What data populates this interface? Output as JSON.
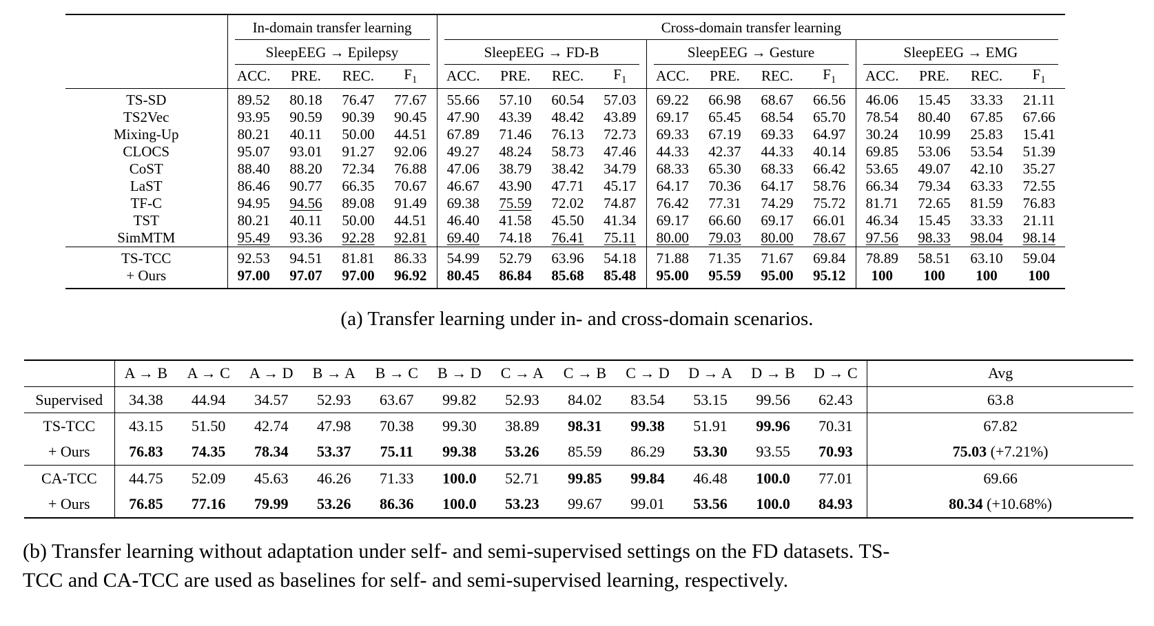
{
  "page": {
    "background": "#ffffff",
    "text_color": "#000000"
  },
  "table_a": {
    "group_titles": [
      "In-domain transfer learning",
      "Cross-domain transfer learning"
    ],
    "datasets": [
      "SleepEEG → Epilepsy",
      "SleepEEG → FD-B",
      "SleepEEG → Gesture",
      "SleepEEG → EMG"
    ],
    "metrics": [
      "ACC.",
      "PRE.",
      "REC.",
      "F1"
    ],
    "rows": [
      {
        "label": "TS-SD",
        "cells": [
          "89.52",
          "80.18",
          "76.47",
          "77.67",
          "55.66",
          "57.10",
          "60.54",
          "57.03",
          "69.22",
          "66.98",
          "68.67",
          "66.56",
          "46.06",
          "15.45",
          "33.33",
          "21.11"
        ],
        "styles": "................"
      },
      {
        "label": "TS2Vec",
        "cells": [
          "93.95",
          "90.59",
          "90.39",
          "90.45",
          "47.90",
          "43.39",
          "48.42",
          "43.89",
          "69.17",
          "65.45",
          "68.54",
          "65.70",
          "78.54",
          "80.40",
          "67.85",
          "67.66"
        ],
        "styles": "................"
      },
      {
        "label": "Mixing-Up",
        "cells": [
          "80.21",
          "40.11",
          "50.00",
          "44.51",
          "67.89",
          "71.46",
          "76.13",
          "72.73",
          "69.33",
          "67.19",
          "69.33",
          "64.97",
          "30.24",
          "10.99",
          "25.83",
          "15.41"
        ],
        "styles": "................"
      },
      {
        "label": "CLOCS",
        "cells": [
          "95.07",
          "93.01",
          "91.27",
          "92.06",
          "49.27",
          "48.24",
          "58.73",
          "47.46",
          "44.33",
          "42.37",
          "44.33",
          "40.14",
          "69.85",
          "53.06",
          "53.54",
          "51.39"
        ],
        "styles": "................"
      },
      {
        "label": "CoST",
        "cells": [
          "88.40",
          "88.20",
          "72.34",
          "76.88",
          "47.06",
          "38.79",
          "38.42",
          "34.79",
          "68.33",
          "65.30",
          "68.33",
          "66.42",
          "53.65",
          "49.07",
          "42.10",
          "35.27"
        ],
        "styles": "................"
      },
      {
        "label": "LaST",
        "cells": [
          "86.46",
          "90.77",
          "66.35",
          "70.67",
          "46.67",
          "43.90",
          "47.71",
          "45.17",
          "64.17",
          "70.36",
          "64.17",
          "58.76",
          "66.34",
          "79.34",
          "63.33",
          "72.55"
        ],
        "styles": "................"
      },
      {
        "label": "TF-C",
        "cells": [
          "94.95",
          "94.56",
          "89.08",
          "91.49",
          "69.38",
          "75.59",
          "72.02",
          "74.87",
          "76.42",
          "77.31",
          "74.29",
          "75.72",
          "81.71",
          "72.65",
          "81.59",
          "76.83"
        ],
        "styles": ".u...u.........."
      },
      {
        "label": "TST",
        "cells": [
          "80.21",
          "40.11",
          "50.00",
          "44.51",
          "46.40",
          "41.58",
          "45.50",
          "41.34",
          "69.17",
          "66.60",
          "69.17",
          "66.01",
          "46.34",
          "15.45",
          "33.33",
          "21.11"
        ],
        "styles": "................"
      },
      {
        "label": "SimMTM",
        "cells": [
          "95.49",
          "93.36",
          "92.28",
          "92.81",
          "69.40",
          "74.18",
          "76.41",
          "75.11",
          "80.00",
          "79.03",
          "80.00",
          "78.67",
          "97.56",
          "98.33",
          "98.04",
          "98.14"
        ],
        "styles": "u.uuu.uuuuuuuuuu"
      },
      {
        "label": "TS-TCC",
        "cells": [
          "92.53",
          "94.51",
          "81.81",
          "86.33",
          "54.99",
          "52.79",
          "63.96",
          "54.18",
          "71.88",
          "71.35",
          "71.67",
          "69.84",
          "78.89",
          "58.51",
          "63.10",
          "59.04"
        ],
        "styles": "................"
      },
      {
        "label": "+ Ours",
        "cells": [
          "97.00",
          "97.07",
          "97.00",
          "96.92",
          "80.45",
          "86.84",
          "85.68",
          "85.48",
          "95.00",
          "95.59",
          "95.00",
          "95.12",
          "100",
          "100",
          "100",
          "100"
        ],
        "styles": "bbbbbbbbbbbbbbbb"
      }
    ],
    "row_blocks": [
      [
        0,
        1,
        2,
        3,
        4,
        5,
        6,
        7,
        8
      ],
      [
        9,
        10
      ]
    ],
    "caption": "(a) Transfer learning under in- and cross-domain scenarios."
  },
  "table_b": {
    "columns": [
      "A → B",
      "A → C",
      "A → D",
      "B → A",
      "B → C",
      "B → D",
      "C → A",
      "C → B",
      "C → D",
      "D → A",
      "D → B",
      "D → C"
    ],
    "avg_label": "Avg",
    "rows": [
      {
        "label": "Supervised",
        "cells": [
          "34.38",
          "44.94",
          "34.57",
          "52.93",
          "63.67",
          "99.82",
          "52.93",
          "84.02",
          "83.54",
          "53.15",
          "99.56",
          "62.43"
        ],
        "styles": "............",
        "avg": {
          "value": "63.8",
          "bold": false
        }
      },
      {
        "label": "TS-TCC",
        "cells": [
          "43.15",
          "51.50",
          "42.74",
          "47.98",
          "70.38",
          "99.30",
          "38.89",
          "98.31",
          "99.38",
          "51.91",
          "99.96",
          "70.31"
        ],
        "styles": ".......bb.b.",
        "avg": {
          "value": "67.82",
          "bold": false
        }
      },
      {
        "label": "+ Ours",
        "cells": [
          "76.83",
          "74.35",
          "78.34",
          "53.37",
          "75.11",
          "99.38",
          "53.26",
          "85.59",
          "86.29",
          "53.30",
          "93.55",
          "70.93"
        ],
        "styles": "bbbbbbb..b.b",
        "avg": {
          "value": "75.03",
          "bold": true,
          "note": "(+7.21%)"
        }
      },
      {
        "label": "CA-TCC",
        "cells": [
          "44.75",
          "52.09",
          "45.63",
          "46.26",
          "71.33",
          "100.0",
          "52.71",
          "99.85",
          "99.84",
          "46.48",
          "100.0",
          "77.01"
        ],
        "styles": ".....b.bb.b.",
        "avg": {
          "value": "69.66",
          "bold": false
        }
      },
      {
        "label": "+ Ours",
        "cells": [
          "76.85",
          "77.16",
          "79.99",
          "53.26",
          "86.36",
          "100.0",
          "53.23",
          "99.67",
          "99.01",
          "53.56",
          "100.0",
          "84.93"
        ],
        "styles": "bbbbbbb..bbb",
        "avg": {
          "value": "80.34",
          "bold": true,
          "note": "(+10.68%)"
        }
      }
    ],
    "row_blocks": [
      [
        0
      ],
      [
        1,
        2
      ],
      [
        3,
        4
      ]
    ],
    "caption_lines": [
      "(b) Transfer learning without adaptation under self- and semi-supervised settings on the FD datasets. TS-",
      "TCC and CA-TCC are used as baselines for self- and semi-supervised learning, respectively."
    ]
  }
}
